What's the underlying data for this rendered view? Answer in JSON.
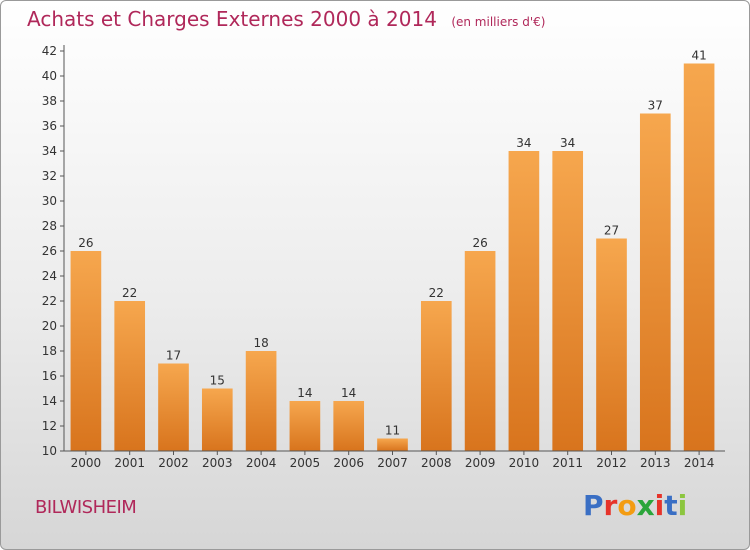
{
  "chart_data": {
    "type": "bar",
    "title": "Achats et Charges Externes 2000 à 2014",
    "subtitle": "(en milliers d'€)",
    "categories": [
      "2000",
      "2001",
      "2002",
      "2003",
      "2004",
      "2005",
      "2006",
      "2007",
      "2008",
      "2009",
      "2010",
      "2011",
      "2012",
      "2013",
      "2014"
    ],
    "values": [
      26,
      22,
      17,
      15,
      18,
      14,
      14,
      11,
      22,
      26,
      34,
      34,
      27,
      37,
      41
    ],
    "ylim": [
      10,
      42
    ],
    "yticks": [
      10,
      12,
      14,
      16,
      18,
      20,
      22,
      24,
      26,
      28,
      30,
      32,
      34,
      36,
      38,
      40,
      42
    ],
    "grid": false,
    "bar_color_top": "#f6a74e",
    "bar_color_bottom": "#d8741d"
  },
  "footer": {
    "commune": "BILWISHEIM",
    "logo_letters": [
      "P",
      "r",
      "o",
      "x",
      "i",
      "t",
      "i"
    ],
    "logo_colors": [
      "#3a6fc4",
      "#e6332a",
      "#f39c12",
      "#2aa53a",
      "#e6332a",
      "#3a6fc4",
      "#8cc63f"
    ]
  }
}
